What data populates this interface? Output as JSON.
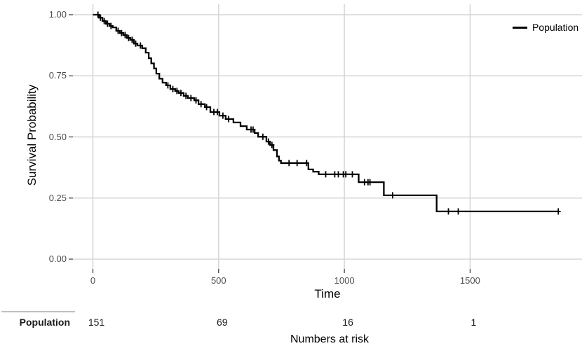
{
  "figure": {
    "y_axis": {
      "title": "Survival Probability",
      "tick_labels": [
        "1.00",
        "0.75",
        "0.50",
        "0.25",
        "0.00"
      ],
      "tick_values": [
        1.0,
        0.75,
        0.5,
        0.25,
        0.0
      ]
    },
    "x_axis": {
      "title": "Time",
      "tick_labels": [
        "0",
        "500",
        "1000",
        "1500"
      ],
      "tick_values": [
        0,
        500,
        1000,
        1500
      ]
    },
    "legend": {
      "label": "Population"
    },
    "risk_table": {
      "row_label": "Population",
      "counts": [
        "151",
        "69",
        "16",
        "1"
      ],
      "caption": "Numbers at risk"
    }
  },
  "colors": {
    "curve": "#000000",
    "gridline": "#d5d5d5",
    "tick_mark": "#333333",
    "tick_label": "#4d4d4d",
    "risk_separator": "#c0c0c0",
    "risk_number": "#1a1a1a"
  },
  "chart_data": {
    "type": "line",
    "subtype": "kaplan_meier_step_function",
    "title": "",
    "xlabel": "Time",
    "ylabel": "Survival Probability",
    "xlim": [
      0,
      1900
    ],
    "ylim": [
      0.0,
      1.0
    ],
    "x_ticks": [
      0,
      500,
      1000,
      1500
    ],
    "y_ticks": [
      0.0,
      0.25,
      0.5,
      0.75,
      1.0
    ],
    "grid": "major",
    "legend_position": "top-right",
    "series": [
      {
        "name": "Population",
        "color": "#000000",
        "steps": [
          [
            0,
            1.0
          ],
          [
            24,
            0.988
          ],
          [
            38,
            0.974
          ],
          [
            52,
            0.963
          ],
          [
            66,
            0.954
          ],
          [
            79,
            0.948
          ],
          [
            93,
            0.934
          ],
          [
            107,
            0.925
          ],
          [
            121,
            0.917
          ],
          [
            135,
            0.905
          ],
          [
            149,
            0.897
          ],
          [
            163,
            0.882
          ],
          [
            177,
            0.874
          ],
          [
            196,
            0.863
          ],
          [
            210,
            0.845
          ],
          [
            222,
            0.822
          ],
          [
            232,
            0.801
          ],
          [
            243,
            0.78
          ],
          [
            252,
            0.759
          ],
          [
            264,
            0.738
          ],
          [
            277,
            0.722
          ],
          [
            291,
            0.711
          ],
          [
            308,
            0.696
          ],
          [
            327,
            0.688
          ],
          [
            341,
            0.68
          ],
          [
            361,
            0.668
          ],
          [
            378,
            0.659
          ],
          [
            403,
            0.65
          ],
          [
            420,
            0.634
          ],
          [
            445,
            0.622
          ],
          [
            467,
            0.602
          ],
          [
            503,
            0.587
          ],
          [
            528,
            0.573
          ],
          [
            559,
            0.559
          ],
          [
            587,
            0.544
          ],
          [
            612,
            0.53
          ],
          [
            643,
            0.516
          ],
          [
            657,
            0.501
          ],
          [
            690,
            0.481
          ],
          [
            704,
            0.467
          ],
          [
            718,
            0.446
          ],
          [
            732,
            0.42
          ],
          [
            740,
            0.403
          ],
          [
            748,
            0.393
          ],
          [
            857,
            0.367
          ],
          [
            876,
            0.358
          ],
          [
            898,
            0.347
          ],
          [
            1057,
            0.315
          ],
          [
            1157,
            0.261
          ],
          [
            1367,
            0.195
          ]
        ],
        "censor_marks": [
          [
            20,
            1.0
          ],
          [
            30,
            0.988
          ],
          [
            45,
            0.974
          ],
          [
            58,
            0.963
          ],
          [
            72,
            0.954
          ],
          [
            100,
            0.934
          ],
          [
            114,
            0.925
          ],
          [
            128,
            0.917
          ],
          [
            142,
            0.905
          ],
          [
            156,
            0.897
          ],
          [
            170,
            0.882
          ],
          [
            189,
            0.874
          ],
          [
            298,
            0.711
          ],
          [
            318,
            0.696
          ],
          [
            334,
            0.688
          ],
          [
            350,
            0.68
          ],
          [
            370,
            0.668
          ],
          [
            390,
            0.659
          ],
          [
            410,
            0.65
          ],
          [
            430,
            0.634
          ],
          [
            452,
            0.622
          ],
          [
            481,
            0.602
          ],
          [
            495,
            0.602
          ],
          [
            517,
            0.587
          ],
          [
            540,
            0.573
          ],
          [
            629,
            0.53
          ],
          [
            637,
            0.53
          ],
          [
            676,
            0.501
          ],
          [
            698,
            0.481
          ],
          [
            712,
            0.467
          ],
          [
            780,
            0.393
          ],
          [
            812,
            0.393
          ],
          [
            850,
            0.393
          ],
          [
            926,
            0.347
          ],
          [
            962,
            0.347
          ],
          [
            976,
            0.347
          ],
          [
            996,
            0.347
          ],
          [
            1006,
            0.347
          ],
          [
            1032,
            0.347
          ],
          [
            1080,
            0.315
          ],
          [
            1094,
            0.315
          ],
          [
            1102,
            0.315
          ],
          [
            1192,
            0.261
          ],
          [
            1414,
            0.195
          ],
          [
            1453,
            0.195
          ],
          [
            1851,
            0.195
          ]
        ],
        "end_time": 1851
      }
    ],
    "numbers_at_risk": {
      "group": "Population",
      "times": [
        0,
        500,
        1000,
        1500
      ],
      "counts": [
        151,
        69,
        16,
        1
      ]
    }
  }
}
